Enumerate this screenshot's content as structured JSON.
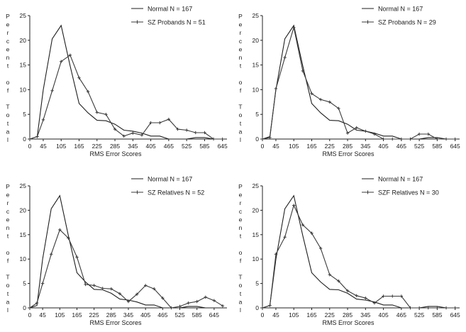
{
  "figure": {
    "ylabel_letters": [
      "P",
      "e",
      "r",
      "c",
      "e",
      "n",
      "t",
      "",
      "o",
      "f",
      "",
      "T",
      "o",
      "t",
      "a",
      "l"
    ],
    "x_ticks": [
      0,
      45,
      105,
      165,
      225,
      285,
      345,
      405,
      465,
      525,
      585,
      645
    ],
    "y_ticks": [
      0,
      5,
      10,
      15,
      20,
      25
    ],
    "ylim": [
      0,
      25
    ],
    "xlim": [
      0,
      660
    ]
  },
  "chart_data": [
    {
      "type": "line",
      "title": "",
      "xlabel": "RMS Error Scores",
      "ylabel": "Percent of Total",
      "xlim": [
        0,
        660
      ],
      "ylim": [
        0,
        25
      ],
      "series": [
        {
          "name": "Normal N = 167",
          "marker": "none",
          "x": [
            0,
            25,
            45,
            75,
            105,
            135,
            165,
            195,
            225,
            255,
            285,
            315,
            345,
            375,
            405,
            435,
            465,
            495,
            525,
            555,
            585,
            615,
            645
          ],
          "y": [
            0,
            0.5,
            10,
            20.3,
            23,
            14.8,
            7.2,
            5.3,
            3.8,
            3.7,
            3.0,
            1.8,
            1.6,
            1.2,
            0.6,
            0.6,
            0,
            0,
            0,
            0.3,
            0.3,
            0,
            0
          ]
        },
        {
          "name": "SZ Probands N = 51",
          "marker": "plus",
          "x": [
            0,
            25,
            45,
            75,
            105,
            135,
            165,
            195,
            225,
            255,
            285,
            315,
            345,
            375,
            405,
            435,
            465,
            495,
            525,
            555,
            585,
            615,
            645
          ],
          "y": [
            0,
            0.5,
            3.9,
            9.8,
            15.7,
            17.0,
            12.4,
            9.6,
            5.4,
            5.0,
            2.0,
            0.6,
            1.2,
            0.8,
            3.3,
            3.3,
            4.0,
            2.0,
            1.8,
            1.3,
            1.3,
            0,
            0
          ]
        }
      ]
    },
    {
      "type": "line",
      "title": "",
      "xlabel": "RMS Error Scores",
      "ylabel": "Percent of Total",
      "xlim": [
        0,
        660
      ],
      "ylim": [
        0,
        25
      ],
      "series": [
        {
          "name": "Normal N = 167",
          "marker": "none",
          "x": [
            0,
            25,
            45,
            75,
            105,
            135,
            165,
            195,
            225,
            255,
            285,
            315,
            345,
            375,
            405,
            435,
            465,
            495,
            525,
            555,
            585,
            615,
            645
          ],
          "y": [
            0,
            0.5,
            10,
            20.3,
            23,
            14.8,
            7.2,
            5.3,
            3.8,
            3.7,
            3.0,
            1.8,
            1.6,
            1.2,
            0.6,
            0.6,
            0,
            0,
            0,
            0.3,
            0.3,
            0,
            0
          ]
        },
        {
          "name": "SZ Probands N = 29",
          "marker": "plus",
          "x": [
            0,
            25,
            45,
            75,
            105,
            135,
            165,
            195,
            225,
            255,
            285,
            315,
            345,
            375,
            405,
            435,
            465,
            495,
            525,
            555,
            585,
            615,
            645
          ],
          "y": [
            0,
            0.3,
            10.2,
            16.5,
            22.6,
            13.8,
            9.2,
            8.0,
            7.5,
            6.2,
            1.2,
            2.3,
            1.6,
            1.0,
            0,
            0,
            0,
            0,
            1.0,
            1.0,
            0,
            0,
            0
          ]
        }
      ]
    },
    {
      "type": "line",
      "title": "",
      "xlabel": "RMS Error Scores",
      "ylabel": "Percent of Total",
      "xlim": [
        0,
        690
      ],
      "ylim": [
        0,
        25
      ],
      "series": [
        {
          "name": "Normal N = 167",
          "marker": "none",
          "x": [
            0,
            25,
            45,
            75,
            105,
            135,
            165,
            195,
            225,
            255,
            285,
            315,
            345,
            375,
            405,
            435,
            465,
            495,
            525,
            555,
            585,
            615,
            645,
            675
          ],
          "y": [
            0,
            0.5,
            10,
            20.3,
            23,
            14.8,
            7.2,
            5.3,
            3.8,
            3.7,
            3.0,
            1.8,
            1.6,
            1.2,
            0.6,
            0.6,
            0,
            0,
            0,
            0.3,
            0.3,
            0,
            0,
            0
          ]
        },
        {
          "name": "SZ Relatives N = 52",
          "marker": "plus",
          "x": [
            0,
            25,
            45,
            75,
            105,
            135,
            165,
            195,
            225,
            255,
            285,
            315,
            345,
            375,
            405,
            435,
            465,
            495,
            525,
            555,
            585,
            615,
            645,
            675
          ],
          "y": [
            0,
            1.0,
            5.0,
            11.0,
            16.0,
            14.3,
            10.4,
            4.8,
            4.6,
            4.0,
            3.9,
            2.9,
            1.3,
            2.8,
            4.6,
            3.9,
            2.0,
            0,
            0.3,
            1.0,
            1.3,
            2.2,
            1.5,
            0.4
          ]
        }
      ]
    },
    {
      "type": "line",
      "title": "",
      "xlabel": "RMS Error Scores",
      "ylabel": "Percent of Total",
      "xlim": [
        0,
        660
      ],
      "ylim": [
        0,
        25
      ],
      "series": [
        {
          "name": "Normal N = 167",
          "marker": "none",
          "x": [
            0,
            25,
            45,
            75,
            105,
            135,
            165,
            195,
            225,
            255,
            285,
            315,
            345,
            375,
            405,
            435,
            465,
            495,
            525,
            555,
            585,
            615,
            645
          ],
          "y": [
            0,
            0.5,
            10,
            20.3,
            23,
            14.8,
            7.2,
            5.3,
            3.8,
            3.7,
            3.0,
            1.8,
            1.6,
            1.2,
            0.6,
            0.6,
            0,
            0,
            0,
            0.3,
            0.3,
            0,
            0
          ]
        },
        {
          "name": "SZF Relatives N = 30",
          "marker": "plus",
          "x": [
            0,
            25,
            45,
            75,
            105,
            135,
            165,
            195,
            225,
            255,
            285,
            315,
            345,
            375,
            405,
            435,
            465,
            495,
            525,
            555,
            585,
            615,
            645
          ],
          "y": [
            0,
            0.5,
            11.0,
            14.5,
            21.0,
            17.0,
            15.3,
            12.2,
            6.8,
            5.5,
            3.5,
            2.5,
            2.0,
            1.0,
            2.4,
            2.4,
            2.4,
            0,
            0,
            0,
            0,
            0,
            0
          ]
        }
      ]
    }
  ]
}
